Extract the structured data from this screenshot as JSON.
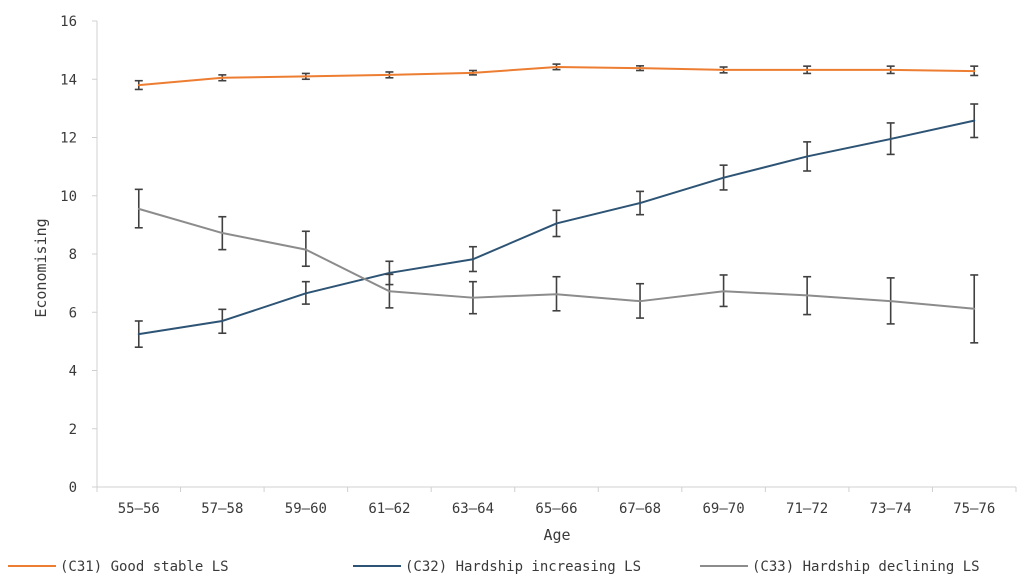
{
  "chart_data": {
    "type": "line",
    "xlabel": "Age",
    "ylabel": "Economising",
    "ylim": [
      0,
      16
    ],
    "yticks": [
      0,
      2,
      4,
      6,
      8,
      10,
      12,
      14,
      16
    ],
    "categories": [
      "55-56",
      "57-58",
      "59-60",
      "61-62",
      "63-64",
      "65-66",
      "67-68",
      "69-70",
      "71-72",
      "73-74",
      "75-76"
    ],
    "grid": false,
    "legend_position": "bottom",
    "series": [
      {
        "name": "(C31) Good stable LS",
        "color": "#ed7d31",
        "values": [
          13.8,
          14.05,
          14.1,
          14.15,
          14.22,
          14.42,
          14.38,
          14.32,
          14.32,
          14.32,
          14.28
        ],
        "err_low": [
          13.65,
          13.95,
          14.0,
          14.05,
          14.15,
          14.33,
          14.3,
          14.22,
          14.2,
          14.2,
          14.13
        ],
        "err_high": [
          13.95,
          14.15,
          14.2,
          14.25,
          14.3,
          14.52,
          14.46,
          14.42,
          14.45,
          14.45,
          14.45
        ]
      },
      {
        "name": "(C32) Hardship increasing LS",
        "color": "#2e5475",
        "values": [
          5.25,
          5.7,
          6.65,
          7.35,
          7.82,
          9.05,
          9.75,
          10.62,
          11.35,
          11.95,
          12.58
        ],
        "err_low": [
          4.8,
          5.28,
          6.28,
          6.95,
          7.4,
          8.6,
          9.35,
          10.2,
          10.85,
          11.42,
          12.0
        ],
        "err_high": [
          5.7,
          6.1,
          7.05,
          7.75,
          8.25,
          9.5,
          10.15,
          11.05,
          11.85,
          12.5,
          13.15
        ]
      },
      {
        "name": "(C33) Hardship declining LS",
        "color": "#8c8c8c",
        "values": [
          9.55,
          8.72,
          8.15,
          6.72,
          6.5,
          6.62,
          6.38,
          6.72,
          6.58,
          6.38,
          6.12
        ],
        "err_low": [
          8.9,
          8.15,
          7.58,
          6.15,
          5.95,
          6.05,
          5.8,
          6.2,
          5.92,
          5.6,
          4.95
        ],
        "err_high": [
          10.22,
          9.28,
          8.78,
          7.3,
          7.05,
          7.22,
          6.98,
          7.28,
          7.22,
          7.18,
          7.28
        ]
      }
    ]
  }
}
